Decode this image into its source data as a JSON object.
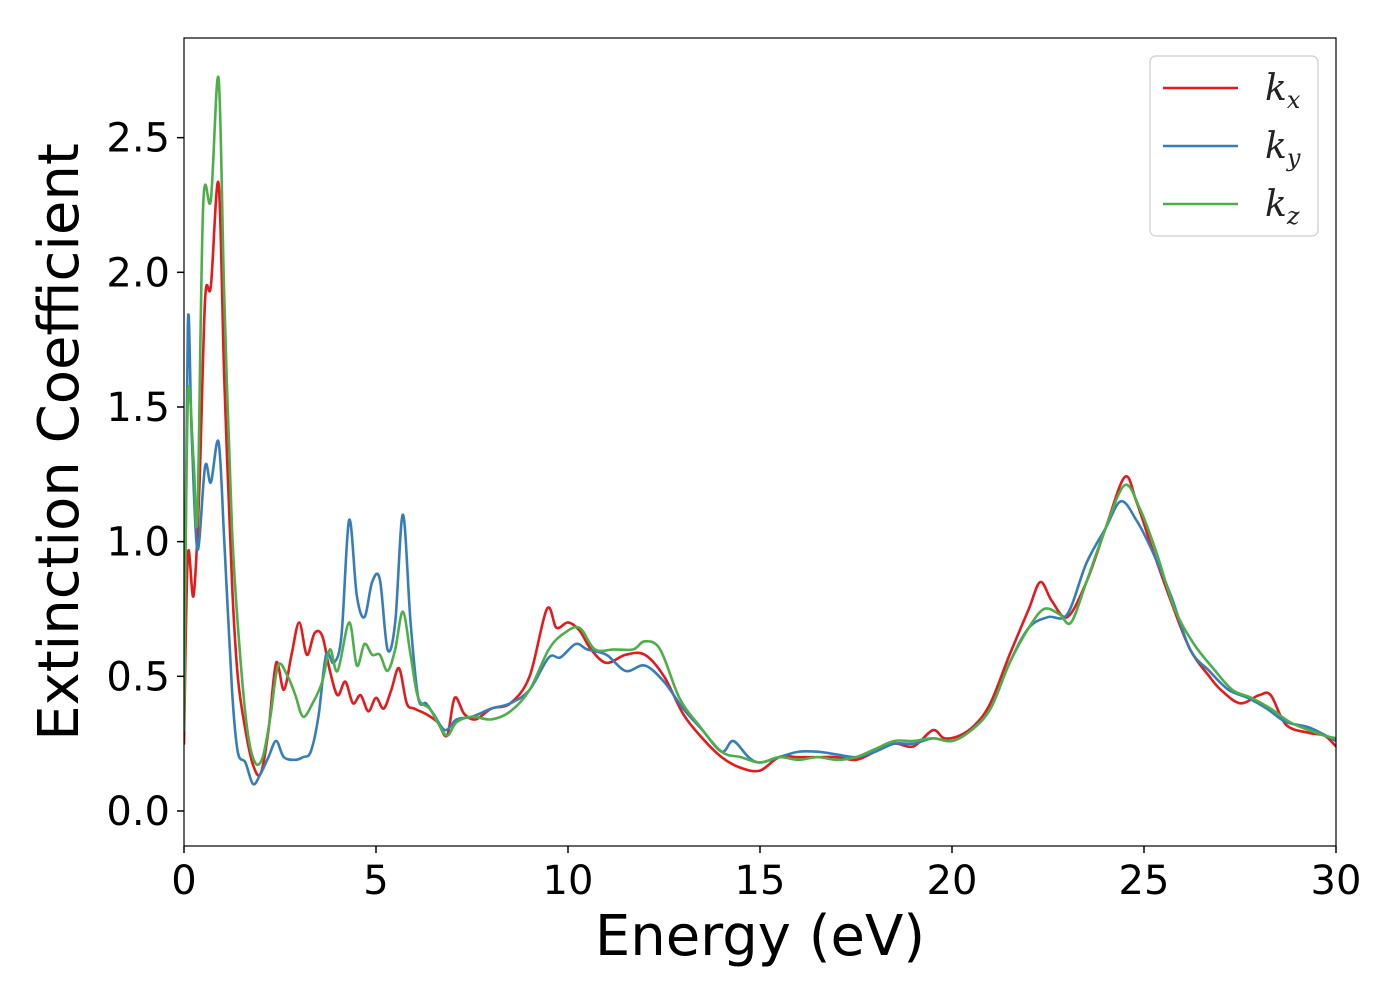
{
  "chart_data": {
    "type": "line",
    "title": "",
    "xlabel": "Energy (eV)",
    "ylabel": "Extinction Coefficient",
    "xlim": [
      0,
      30
    ],
    "ylim": [
      -0.13,
      2.87
    ],
    "xticks": [
      0,
      5,
      10,
      15,
      20,
      25,
      30
    ],
    "xtick_labels": [
      "0",
      "5",
      "10",
      "15",
      "20",
      "25",
      "30"
    ],
    "yticks": [
      0.0,
      0.5,
      1.0,
      1.5,
      2.0,
      2.5
    ],
    "ytick_labels": [
      "0.0",
      "0.5",
      "1.0",
      "1.5",
      "2.0",
      "2.5"
    ],
    "grid": false,
    "legend_position": "top-right",
    "series": [
      {
        "name": "k_x",
        "label_main": "k",
        "label_sub": "x",
        "color": "#e41a1c",
        "points": [
          [
            0,
            0.25
          ],
          [
            0.1,
            0.95
          ],
          [
            0.25,
            0.8
          ],
          [
            0.4,
            1.2
          ],
          [
            0.55,
            1.9
          ],
          [
            0.7,
            1.95
          ],
          [
            0.9,
            2.33
          ],
          [
            1.05,
            1.6
          ],
          [
            1.25,
            0.85
          ],
          [
            1.4,
            0.5
          ],
          [
            1.6,
            0.3
          ],
          [
            1.8,
            0.17
          ],
          [
            2.0,
            0.14
          ],
          [
            2.2,
            0.3
          ],
          [
            2.4,
            0.55
          ],
          [
            2.6,
            0.45
          ],
          [
            2.8,
            0.58
          ],
          [
            3.0,
            0.7
          ],
          [
            3.2,
            0.58
          ],
          [
            3.4,
            0.66
          ],
          [
            3.6,
            0.65
          ],
          [
            3.8,
            0.52
          ],
          [
            4.0,
            0.43
          ],
          [
            4.2,
            0.48
          ],
          [
            4.4,
            0.4
          ],
          [
            4.6,
            0.43
          ],
          [
            4.8,
            0.37
          ],
          [
            5.0,
            0.42
          ],
          [
            5.2,
            0.38
          ],
          [
            5.4,
            0.45
          ],
          [
            5.6,
            0.53
          ],
          [
            5.8,
            0.4
          ],
          [
            6.0,
            0.38
          ],
          [
            6.3,
            0.36
          ],
          [
            6.6,
            0.33
          ],
          [
            6.85,
            0.28
          ],
          [
            7.05,
            0.42
          ],
          [
            7.3,
            0.36
          ],
          [
            7.6,
            0.34
          ],
          [
            8.0,
            0.38
          ],
          [
            8.5,
            0.4
          ],
          [
            9.0,
            0.5
          ],
          [
            9.45,
            0.75
          ],
          [
            9.7,
            0.68
          ],
          [
            10.0,
            0.7
          ],
          [
            10.3,
            0.67
          ],
          [
            10.6,
            0.6
          ],
          [
            11.0,
            0.55
          ],
          [
            11.5,
            0.58
          ],
          [
            12.0,
            0.58
          ],
          [
            12.5,
            0.5
          ],
          [
            13.0,
            0.36
          ],
          [
            13.5,
            0.27
          ],
          [
            14.0,
            0.2
          ],
          [
            14.5,
            0.16
          ],
          [
            15.0,
            0.15
          ],
          [
            15.5,
            0.2
          ],
          [
            16.0,
            0.2
          ],
          [
            16.5,
            0.2
          ],
          [
            17.0,
            0.2
          ],
          [
            17.5,
            0.19
          ],
          [
            18.0,
            0.22
          ],
          [
            18.5,
            0.25
          ],
          [
            19.0,
            0.24
          ],
          [
            19.5,
            0.3
          ],
          [
            19.8,
            0.27
          ],
          [
            20.2,
            0.28
          ],
          [
            20.6,
            0.32
          ],
          [
            21.0,
            0.4
          ],
          [
            21.5,
            0.58
          ],
          [
            22.0,
            0.75
          ],
          [
            22.3,
            0.85
          ],
          [
            22.6,
            0.78
          ],
          [
            23.0,
            0.72
          ],
          [
            23.5,
            0.85
          ],
          [
            24.0,
            1.05
          ],
          [
            24.5,
            1.24
          ],
          [
            24.8,
            1.15
          ],
          [
            25.2,
            0.98
          ],
          [
            25.7,
            0.78
          ],
          [
            26.2,
            0.6
          ],
          [
            26.7,
            0.5
          ],
          [
            27.0,
            0.45
          ],
          [
            27.5,
            0.4
          ],
          [
            28.0,
            0.43
          ],
          [
            28.3,
            0.43
          ],
          [
            28.7,
            0.32
          ],
          [
            29.3,
            0.29
          ],
          [
            29.7,
            0.28
          ],
          [
            30.0,
            0.24
          ]
        ]
      },
      {
        "name": "k_y",
        "label_main": "k",
        "label_sub": "y",
        "color": "#377eb8",
        "points": [
          [
            0,
            0.3
          ],
          [
            0.1,
            1.8
          ],
          [
            0.2,
            1.4
          ],
          [
            0.35,
            0.97
          ],
          [
            0.55,
            1.28
          ],
          [
            0.7,
            1.22
          ],
          [
            0.9,
            1.37
          ],
          [
            1.05,
            1.0
          ],
          [
            1.25,
            0.45
          ],
          [
            1.4,
            0.22
          ],
          [
            1.6,
            0.18
          ],
          [
            1.8,
            0.1
          ],
          [
            2.0,
            0.14
          ],
          [
            2.2,
            0.2
          ],
          [
            2.4,
            0.26
          ],
          [
            2.6,
            0.2
          ],
          [
            2.9,
            0.19
          ],
          [
            3.1,
            0.2
          ],
          [
            3.3,
            0.22
          ],
          [
            3.5,
            0.35
          ],
          [
            3.7,
            0.58
          ],
          [
            3.9,
            0.55
          ],
          [
            4.1,
            0.65
          ],
          [
            4.3,
            1.08
          ],
          [
            4.5,
            0.8
          ],
          [
            4.7,
            0.72
          ],
          [
            4.9,
            0.85
          ],
          [
            5.1,
            0.86
          ],
          [
            5.3,
            0.6
          ],
          [
            5.5,
            0.7
          ],
          [
            5.7,
            1.1
          ],
          [
            5.9,
            0.7
          ],
          [
            6.1,
            0.42
          ],
          [
            6.3,
            0.4
          ],
          [
            6.5,
            0.36
          ],
          [
            6.8,
            0.3
          ],
          [
            7.1,
            0.34
          ],
          [
            7.5,
            0.35
          ],
          [
            8.0,
            0.38
          ],
          [
            8.5,
            0.4
          ],
          [
            9.0,
            0.45
          ],
          [
            9.5,
            0.57
          ],
          [
            9.8,
            0.57
          ],
          [
            10.2,
            0.62
          ],
          [
            10.5,
            0.6
          ],
          [
            11.0,
            0.58
          ],
          [
            11.5,
            0.52
          ],
          [
            12.0,
            0.54
          ],
          [
            12.5,
            0.48
          ],
          [
            13.0,
            0.38
          ],
          [
            13.5,
            0.3
          ],
          [
            14.0,
            0.22
          ],
          [
            14.3,
            0.26
          ],
          [
            14.7,
            0.2
          ],
          [
            15.0,
            0.18
          ],
          [
            15.5,
            0.2
          ],
          [
            16.0,
            0.22
          ],
          [
            16.5,
            0.22
          ],
          [
            17.0,
            0.21
          ],
          [
            17.5,
            0.2
          ],
          [
            18.0,
            0.22
          ],
          [
            18.5,
            0.25
          ],
          [
            19.0,
            0.25
          ],
          [
            19.5,
            0.27
          ],
          [
            20.0,
            0.26
          ],
          [
            20.5,
            0.3
          ],
          [
            21.0,
            0.38
          ],
          [
            21.5,
            0.55
          ],
          [
            22.0,
            0.68
          ],
          [
            22.5,
            0.72
          ],
          [
            23.0,
            0.73
          ],
          [
            23.5,
            0.92
          ],
          [
            24.0,
            1.05
          ],
          [
            24.4,
            1.15
          ],
          [
            24.8,
            1.08
          ],
          [
            25.2,
            0.97
          ],
          [
            25.7,
            0.8
          ],
          [
            26.2,
            0.6
          ],
          [
            26.7,
            0.52
          ],
          [
            27.2,
            0.45
          ],
          [
            27.7,
            0.42
          ],
          [
            28.2,
            0.38
          ],
          [
            28.7,
            0.33
          ],
          [
            29.3,
            0.31
          ],
          [
            30.0,
            0.26
          ]
        ]
      },
      {
        "name": "k_z",
        "label_main": "k",
        "label_sub": "z",
        "color": "#4daf4a",
        "points": [
          [
            0,
            0.3
          ],
          [
            0.1,
            1.53
          ],
          [
            0.25,
            1.3
          ],
          [
            0.35,
            1.1
          ],
          [
            0.5,
            2.25
          ],
          [
            0.7,
            2.27
          ],
          [
            0.9,
            2.72
          ],
          [
            1.05,
            1.9
          ],
          [
            1.25,
            1.05
          ],
          [
            1.45,
            0.6
          ],
          [
            1.65,
            0.3
          ],
          [
            1.85,
            0.18
          ],
          [
            2.05,
            0.2
          ],
          [
            2.25,
            0.35
          ],
          [
            2.45,
            0.54
          ],
          [
            2.7,
            0.5
          ],
          [
            2.9,
            0.43
          ],
          [
            3.1,
            0.35
          ],
          [
            3.35,
            0.4
          ],
          [
            3.6,
            0.48
          ],
          [
            3.8,
            0.6
          ],
          [
            4.0,
            0.52
          ],
          [
            4.3,
            0.7
          ],
          [
            4.5,
            0.54
          ],
          [
            4.7,
            0.62
          ],
          [
            4.9,
            0.58
          ],
          [
            5.1,
            0.58
          ],
          [
            5.3,
            0.52
          ],
          [
            5.5,
            0.6
          ],
          [
            5.7,
            0.74
          ],
          [
            5.9,
            0.58
          ],
          [
            6.1,
            0.42
          ],
          [
            6.4,
            0.38
          ],
          [
            6.6,
            0.33
          ],
          [
            6.85,
            0.28
          ],
          [
            7.1,
            0.33
          ],
          [
            7.5,
            0.35
          ],
          [
            8.0,
            0.34
          ],
          [
            8.5,
            0.37
          ],
          [
            9.0,
            0.45
          ],
          [
            9.5,
            0.6
          ],
          [
            9.9,
            0.66
          ],
          [
            10.3,
            0.68
          ],
          [
            10.7,
            0.6
          ],
          [
            11.2,
            0.6
          ],
          [
            11.7,
            0.6
          ],
          [
            12.0,
            0.63
          ],
          [
            12.4,
            0.6
          ],
          [
            12.9,
            0.42
          ],
          [
            13.4,
            0.32
          ],
          [
            14.0,
            0.22
          ],
          [
            14.5,
            0.2
          ],
          [
            15.0,
            0.18
          ],
          [
            15.5,
            0.2
          ],
          [
            16.0,
            0.19
          ],
          [
            16.5,
            0.2
          ],
          [
            17.0,
            0.19
          ],
          [
            17.5,
            0.2
          ],
          [
            18.0,
            0.23
          ],
          [
            18.5,
            0.26
          ],
          [
            19.0,
            0.26
          ],
          [
            19.5,
            0.27
          ],
          [
            20.0,
            0.26
          ],
          [
            20.5,
            0.3
          ],
          [
            21.0,
            0.38
          ],
          [
            21.5,
            0.55
          ],
          [
            22.0,
            0.68
          ],
          [
            22.4,
            0.75
          ],
          [
            22.8,
            0.73
          ],
          [
            23.1,
            0.7
          ],
          [
            23.5,
            0.85
          ],
          [
            24.0,
            1.05
          ],
          [
            24.5,
            1.21
          ],
          [
            24.9,
            1.12
          ],
          [
            25.3,
            0.97
          ],
          [
            25.8,
            0.75
          ],
          [
            26.3,
            0.62
          ],
          [
            26.8,
            0.53
          ],
          [
            27.3,
            0.45
          ],
          [
            27.8,
            0.42
          ],
          [
            28.3,
            0.38
          ],
          [
            28.8,
            0.33
          ],
          [
            29.3,
            0.3
          ],
          [
            29.7,
            0.28
          ],
          [
            30.0,
            0.27
          ]
        ]
      }
    ]
  }
}
